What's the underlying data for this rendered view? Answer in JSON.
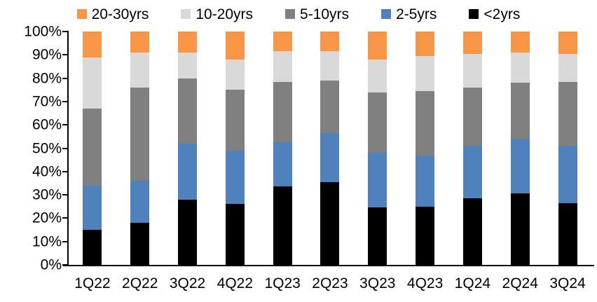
{
  "chart_data": {
    "type": "bar",
    "stacked": true,
    "percent_stacked": true,
    "title": "",
    "xlabel": "",
    "ylabel": "",
    "categories": [
      "1Q22",
      "2Q22",
      "3Q22",
      "4Q22",
      "1Q23",
      "2Q23",
      "3Q23",
      "4Q23",
      "1Q24",
      "2Q24",
      "3Q24"
    ],
    "series": [
      {
        "name": "<2yrs",
        "color": "#000000",
        "values": [
          15,
          18,
          28,
          26,
          33.5,
          35.5,
          24.5,
          25,
          28.5,
          30.5,
          26.5
        ]
      },
      {
        "name": "2-5yrs",
        "color": "#4F81BD",
        "values": [
          19,
          18,
          24,
          23,
          19,
          21,
          23.5,
          22,
          22.5,
          23.5,
          24.5
        ]
      },
      {
        "name": "5-10yrs",
        "color": "#808080",
        "values": [
          33,
          40,
          28,
          26,
          26,
          22.5,
          26,
          27.5,
          25,
          24,
          27.5
        ]
      },
      {
        "name": "10-20yrs",
        "color": "#D9D9D9",
        "values": [
          22,
          15,
          11,
          13,
          13,
          12.5,
          14,
          15,
          14.5,
          13,
          12
        ]
      },
      {
        "name": "20-30yrs",
        "color": "#F79646",
        "values": [
          11,
          9,
          9,
          12,
          8.5,
          8.5,
          12,
          10.5,
          9.5,
          9,
          9.5
        ]
      }
    ],
    "legend": {
      "position": "top",
      "order": [
        "20-30yrs",
        "10-20yrs",
        "5-10yrs",
        "2-5yrs",
        "<2yrs"
      ]
    },
    "y_axis": {
      "min": 0,
      "max": 100,
      "tick_interval": 10,
      "tick_labels_top_to_bottom": [
        "100%",
        "90%",
        "80%",
        "70%",
        "60%",
        "50%",
        "40%",
        "30%",
        "20%",
        "10%",
        "0%"
      ]
    },
    "grid": false,
    "axis_color": "#000000",
    "background_color": "#ffffff"
  }
}
